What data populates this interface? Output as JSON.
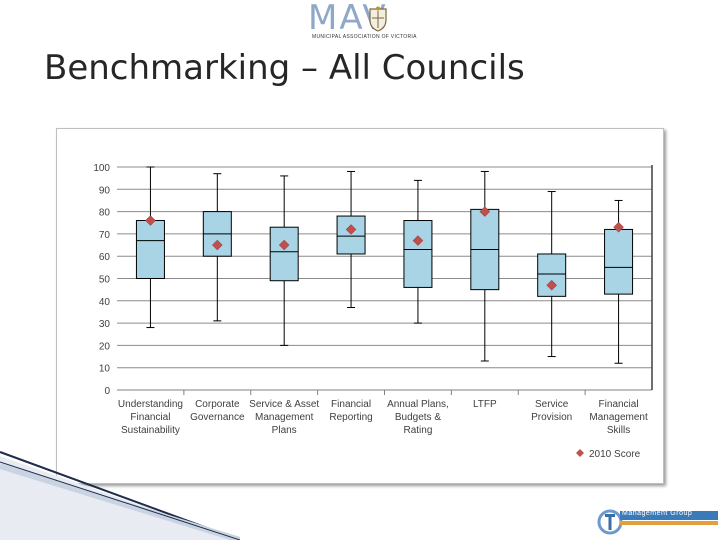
{
  "header": {
    "logo_text": "MAV",
    "logo_subtext": "MUNICIPAL ASSOCIATION OF VICTORIA",
    "title": "Benchmarking – All Councils"
  },
  "footer_logo": {
    "text": "Management Group",
    "subtext": "",
    "accent": "#3a7ab8"
  },
  "chart_data": {
    "type": "boxplot",
    "title": "",
    "xlabel": "",
    "ylabel": "",
    "ylim": [
      0,
      100
    ],
    "yticks": [
      0,
      10,
      20,
      30,
      40,
      50,
      60,
      70,
      80,
      90,
      100
    ],
    "grid": true,
    "legend": {
      "position": "bottom-right",
      "entries": [
        "2010 Score"
      ]
    },
    "box_color": "#a9d4e6",
    "marker_color": "#c0504d",
    "categories": [
      [
        "Understanding",
        "Financial",
        "Sustainability"
      ],
      [
        "Corporate",
        "Governance"
      ],
      [
        "Service & Asset",
        "Management",
        "Plans"
      ],
      [
        "Financial",
        "Reporting"
      ],
      [
        "Annual Plans,",
        "Budgets &",
        "Rating"
      ],
      [
        "LTFP"
      ],
      [
        "Service",
        "Provision"
      ],
      [
        "Financial",
        "Management",
        "Skills"
      ]
    ],
    "boxes": [
      {
        "min": 28,
        "q1": 50,
        "median": 67,
        "q3": 76,
        "max": 100
      },
      {
        "min": 31,
        "q1": 60,
        "median": 70,
        "q3": 80,
        "max": 97
      },
      {
        "min": 20,
        "q1": 49,
        "median": 62,
        "q3": 73,
        "max": 96
      },
      {
        "min": 37,
        "q1": 61,
        "median": 69,
        "q3": 78,
        "max": 98
      },
      {
        "min": 30,
        "q1": 46,
        "median": 63,
        "q3": 76,
        "max": 94
      },
      {
        "min": 13,
        "q1": 45,
        "median": 63,
        "q3": 81,
        "max": 98
      },
      {
        "min": 15,
        "q1": 42,
        "median": 52,
        "q3": 61,
        "max": 89
      },
      {
        "min": 12,
        "q1": 43,
        "median": 55,
        "q3": 72,
        "max": 85
      }
    ],
    "series": [
      {
        "name": "2010 Score",
        "values": [
          76,
          65,
          65,
          72,
          67,
          80,
          47,
          73
        ]
      }
    ]
  }
}
